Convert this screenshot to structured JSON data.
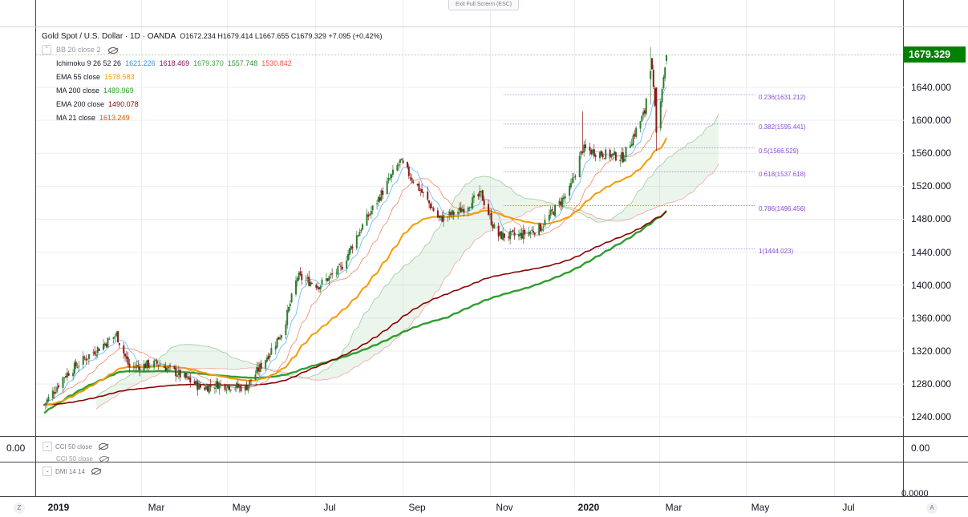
{
  "toolbar": {
    "exit_fullscreen": "Exit Full Screen (ESC)"
  },
  "legend": {
    "symbol": "Gold Spot / U.S. Dollar · 1D · OANDA",
    "ohlc": "O1672.234  H1679.414  L1667.655  C1679.329  +7.095 (+0.42%)",
    "indicators": [
      {
        "name": "BB 20 close 2",
        "values": [],
        "hidden": true
      },
      {
        "name": "Ichimoku 9 26 52 26",
        "values": [
          {
            "v": "1621.226",
            "color": "#2196f3"
          },
          {
            "v": "1618.469",
            "color": "#880e4f"
          },
          {
            "v": "1679.370",
            "color": "#43a047"
          },
          {
            "v": "1557.748",
            "color": "#388e3c"
          },
          {
            "v": "1530.842",
            "color": "#ef5350"
          }
        ]
      },
      {
        "name": "EMA 55 close",
        "values": [
          {
            "v": "1578.583",
            "color": "#f59b00"
          }
        ]
      },
      {
        "name": "MA 200 close",
        "values": [
          {
            "v": "1489.969",
            "color": "#2e9e2e"
          }
        ]
      },
      {
        "name": "EMA 200 close",
        "values": [
          {
            "v": "1490.078",
            "color": "#8b0000"
          }
        ]
      },
      {
        "name": "MA 21 close",
        "values": [
          {
            "v": "1613.249",
            "color": "#e65100"
          }
        ]
      }
    ]
  },
  "price_scale": {
    "last_price": "1679.329",
    "ticks": [
      "1640.000",
      "1600.000",
      "1560.000",
      "1520.000",
      "1480.000",
      "1440.000",
      "1400.000",
      "1360.000",
      "1320.000",
      "1280.000",
      "1240.000"
    ]
  },
  "fib_levels": [
    {
      "label": "0.236(1631.212)",
      "price": 1631.212
    },
    {
      "label": "0.382(1595.441)",
      "price": 1595.441
    },
    {
      "label": "0.5(1566.529)",
      "price": 1566.529
    },
    {
      "label": "0.618(1537.618)",
      "price": 1537.618
    },
    {
      "label": "0.786(1496.456)",
      "price": 1496.456
    },
    {
      "label": "1(1444.023)",
      "price": 1444.023
    }
  ],
  "time_axis": [
    {
      "label": "2019",
      "year": true
    },
    {
      "label": "Mar"
    },
    {
      "label": "May"
    },
    {
      "label": "Jul"
    },
    {
      "label": "Sep"
    },
    {
      "label": "Nov"
    },
    {
      "label": "2020",
      "year": true
    },
    {
      "label": "Mar"
    },
    {
      "label": "May"
    },
    {
      "label": "Jul"
    }
  ],
  "cci_pane": {
    "label_a": "CCI 50 close",
    "label_b": "CCI 50 close",
    "value": "0.00",
    "scale_value": "0.00"
  },
  "dmi_pane": {
    "label": "DMI 14 14",
    "scale_value": "0.0000"
  },
  "corner": {
    "left": "Z",
    "right": "A"
  },
  "chart_data": {
    "type": "candlestick",
    "title": "Gold Spot / U.S. Dollar · 1D · OANDA",
    "ylim": [
      1230,
      1700
    ],
    "x_range": [
      "2019-01",
      "2020-07"
    ],
    "close_path": [
      [
        "2019-01-01",
        1255
      ],
      [
        "2019-01-15",
        1290
      ],
      [
        "2019-02-01",
        1315
      ],
      [
        "2019-02-20",
        1340
      ],
      [
        "2019-03-01",
        1300
      ],
      [
        "2019-03-20",
        1305
      ],
      [
        "2019-04-01",
        1295
      ],
      [
        "2019-04-20",
        1275
      ],
      [
        "2019-05-01",
        1280
      ],
      [
        "2019-05-20",
        1275
      ],
      [
        "2019-06-01",
        1305
      ],
      [
        "2019-06-15",
        1345
      ],
      [
        "2019-06-25",
        1410
      ],
      [
        "2019-07-10",
        1400
      ],
      [
        "2019-07-25",
        1420
      ],
      [
        "2019-08-05",
        1460
      ],
      [
        "2019-08-20",
        1505
      ],
      [
        "2019-09-04",
        1550
      ],
      [
        "2019-09-20",
        1510
      ],
      [
        "2019-10-01",
        1480
      ],
      [
        "2019-10-15",
        1490
      ],
      [
        "2019-10-30",
        1510
      ],
      [
        "2019-11-10",
        1460
      ],
      [
        "2019-11-25",
        1460
      ],
      [
        "2019-12-10",
        1470
      ],
      [
        "2019-12-30",
        1515
      ],
      [
        "2020-01-08",
        1565
      ],
      [
        "2020-01-20",
        1560
      ],
      [
        "2020-02-05",
        1555
      ],
      [
        "2020-02-20",
        1610
      ],
      [
        "2020-02-24",
        1680
      ],
      [
        "2020-02-28",
        1590
      ],
      [
        "2020-03-06",
        1679
      ]
    ],
    "ema55_end": 1578.583,
    "ma200_end": 1489.969,
    "ema200_end": 1490.078,
    "ma21_end": 1613.249
  }
}
